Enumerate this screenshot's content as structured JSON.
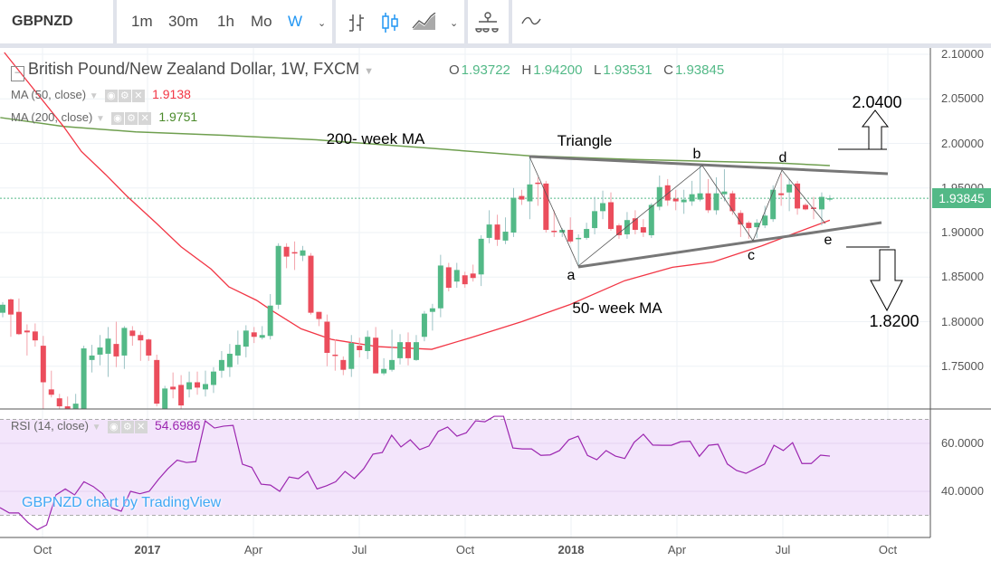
{
  "toolbar": {
    "symbol": "GBPNZD",
    "intervals": [
      "1m",
      "30m",
      "1h",
      "Mo",
      "W"
    ],
    "active_interval": "W",
    "accent": "#2196f3"
  },
  "legend": {
    "title": "British Pound/New Zealand Dollar, 1W, FXCM",
    "o_label": "O",
    "o": "1.93722",
    "h_label": "H",
    "h": "1.94200",
    "l_label": "L",
    "l": "1.93531",
    "c_label": "C",
    "c": "1.93845"
  },
  "ma50": {
    "label": "MA (50, close)",
    "value": "1.9138",
    "color": "#f23645"
  },
  "ma200": {
    "label": "MA (200, close)",
    "value": "1.9751",
    "color": "#4a8a2a"
  },
  "rsi": {
    "label": "RSI (14, close)",
    "value": "54.6986",
    "color": "#9c27b0"
  },
  "price_axis": [
    "2.10000",
    "2.05000",
    "2.00000",
    "1.95000",
    "1.90000",
    "1.85000",
    "1.80000",
    "1.75000"
  ],
  "current_price": "1.93845",
  "rsi_axis": [
    "60.0000",
    "40.0000"
  ],
  "time_axis": [
    "Oct",
    "2017",
    "Apr",
    "Jul",
    "Oct",
    "2018",
    "Apr",
    "Jul",
    "Oct"
  ],
  "watermark": "GBPNZD chart by TradingView",
  "annotations": {
    "triangle": "Triangle",
    "ma200_label": "200- week MA",
    "ma50_label": "50- week MA",
    "a": "a",
    "b": "b",
    "c": "c",
    "d": "d",
    "e": "e",
    "target_up": "2.0400",
    "target_down": "1.8200"
  },
  "colors": {
    "up": "#53b987",
    "down": "#eb4d5c"
  },
  "chart_data": {
    "type": "candlestick",
    "ylim": [
      1.7,
      2.1
    ],
    "ohlc": [
      [
        1.81,
        1.822,
        1.805,
        1.819
      ],
      [
        1.825,
        1.826,
        1.783,
        1.808
      ],
      [
        1.811,
        1.826,
        1.785,
        1.786
      ],
      [
        1.79,
        1.797,
        1.762,
        1.788
      ],
      [
        1.789,
        1.798,
        1.772,
        1.779
      ],
      [
        1.773,
        1.784,
        1.7,
        1.732
      ],
      [
        1.724,
        1.745,
        1.715,
        1.718
      ],
      [
        1.714,
        1.719,
        1.7,
        1.705
      ],
      [
        1.705,
        1.716,
        1.698,
        1.702
      ],
      [
        1.7,
        1.719,
        1.698,
        1.708
      ],
      [
        1.7,
        1.773,
        1.69,
        1.77
      ],
      [
        1.757,
        1.774,
        1.743,
        1.762
      ],
      [
        1.763,
        1.785,
        1.751,
        1.771
      ],
      [
        1.764,
        1.794,
        1.738,
        1.781
      ],
      [
        1.775,
        1.8,
        1.749,
        1.761
      ],
      [
        1.762,
        1.795,
        1.747,
        1.793
      ],
      [
        1.79,
        1.795,
        1.773,
        1.784
      ],
      [
        1.785,
        1.789,
        1.756,
        1.779
      ],
      [
        1.78,
        1.781,
        1.756,
        1.762
      ],
      [
        1.757,
        1.763,
        1.705,
        1.708
      ],
      [
        1.7,
        1.728,
        1.695,
        1.725
      ],
      [
        1.727,
        1.743,
        1.714,
        1.724
      ],
      [
        1.729,
        1.74,
        1.7,
        1.706
      ],
      [
        1.724,
        1.744,
        1.715,
        1.732
      ],
      [
        1.732,
        1.744,
        1.718,
        1.726
      ],
      [
        1.724,
        1.745,
        1.716,
        1.73
      ],
      [
        1.729,
        1.749,
        1.72,
        1.744
      ],
      [
        1.745,
        1.767,
        1.737,
        1.757
      ],
      [
        1.749,
        1.775,
        1.738,
        1.764
      ],
      [
        1.762,
        1.79,
        1.752,
        1.774
      ],
      [
        1.772,
        1.796,
        1.76,
        1.79
      ],
      [
        1.788,
        1.794,
        1.776,
        1.783
      ],
      [
        1.782,
        1.795,
        1.78,
        1.785
      ],
      [
        1.784,
        1.831,
        1.78,
        1.818
      ],
      [
        1.819,
        1.888,
        1.814,
        1.885
      ],
      [
        1.884,
        1.888,
        1.86,
        1.873
      ],
      [
        1.878,
        1.89,
        1.858,
        1.877
      ],
      [
        1.874,
        1.885,
        1.868,
        1.88
      ],
      [
        1.874,
        1.877,
        1.808,
        1.81
      ],
      [
        1.811,
        1.811,
        1.795,
        1.803
      ],
      [
        1.8,
        1.808,
        1.75,
        1.765
      ],
      [
        1.763,
        1.78,
        1.745,
        1.762
      ],
      [
        1.757,
        1.761,
        1.74,
        1.746
      ],
      [
        1.747,
        1.785,
        1.738,
        1.776
      ],
      [
        1.773,
        1.782,
        1.76,
        1.768
      ],
      [
        1.767,
        1.79,
        1.758,
        1.783
      ],
      [
        1.782,
        1.794,
        1.742,
        1.742
      ],
      [
        1.742,
        1.759,
        1.74,
        1.747
      ],
      [
        1.746,
        1.791,
        1.744,
        1.757
      ],
      [
        1.759,
        1.786,
        1.752,
        1.777
      ],
      [
        1.777,
        1.788,
        1.751,
        1.759
      ],
      [
        1.757,
        1.785,
        1.756,
        1.777
      ],
      [
        1.783,
        1.812,
        1.778,
        1.809
      ],
      [
        1.811,
        1.82,
        1.79,
        1.815
      ],
      [
        1.815,
        1.875,
        1.805,
        1.863
      ],
      [
        1.861,
        1.866,
        1.834,
        1.838
      ],
      [
        1.845,
        1.866,
        1.838,
        1.858
      ],
      [
        1.852,
        1.856,
        1.838,
        1.842
      ],
      [
        1.854,
        1.864,
        1.845,
        1.849
      ],
      [
        1.853,
        1.897,
        1.84,
        1.893
      ],
      [
        1.894,
        1.925,
        1.888,
        1.909
      ],
      [
        1.909,
        1.92,
        1.885,
        1.892
      ],
      [
        1.891,
        1.917,
        1.887,
        1.901
      ],
      [
        1.9,
        1.95,
        1.895,
        1.939
      ],
      [
        1.941,
        1.948,
        1.931,
        1.937
      ],
      [
        1.935,
        1.985,
        1.915,
        1.954
      ],
      [
        1.956,
        1.962,
        1.93,
        1.955
      ],
      [
        1.955,
        1.958,
        1.9,
        1.903
      ],
      [
        1.902,
        1.925,
        1.895,
        1.901
      ],
      [
        1.9,
        1.905,
        1.895,
        1.903
      ],
      [
        1.903,
        1.917,
        1.888,
        1.89
      ],
      [
        1.893,
        1.898,
        1.862,
        1.894
      ],
      [
        1.894,
        1.911,
        1.892,
        1.904
      ],
      [
        1.905,
        1.94,
        1.898,
        1.924
      ],
      [
        1.924,
        1.947,
        1.915,
        1.933
      ],
      [
        1.934,
        1.945,
        1.902,
        1.904
      ],
      [
        1.908,
        1.91,
        1.893,
        1.897
      ],
      [
        1.898,
        1.923,
        1.893,
        1.914
      ],
      [
        1.916,
        1.925,
        1.898,
        1.903
      ],
      [
        1.906,
        1.915,
        1.895,
        1.9
      ],
      [
        1.897,
        1.933,
        1.894,
        1.931
      ],
      [
        1.929,
        1.964,
        1.925,
        1.951
      ],
      [
        1.953,
        1.96,
        1.93,
        1.936
      ],
      [
        1.938,
        1.948,
        1.925,
        1.935
      ],
      [
        1.934,
        1.948,
        1.921,
        1.937
      ],
      [
        1.935,
        1.958,
        1.93,
        1.943
      ],
      [
        1.937,
        1.975,
        1.935,
        1.944
      ],
      [
        1.944,
        1.96,
        1.922,
        1.925
      ],
      [
        1.925,
        1.962,
        1.92,
        1.944
      ],
      [
        1.943,
        1.971,
        1.935,
        1.946
      ],
      [
        1.944,
        1.947,
        1.92,
        1.924
      ],
      [
        1.922,
        1.925,
        1.895,
        1.909
      ],
      [
        1.911,
        1.913,
        1.893,
        1.905
      ],
      [
        1.906,
        1.915,
        1.894,
        1.911
      ],
      [
        1.908,
        1.93,
        1.905,
        1.919
      ],
      [
        1.915,
        1.953,
        1.912,
        1.948
      ],
      [
        1.944,
        1.966,
        1.93,
        1.942
      ],
      [
        1.945,
        1.96,
        1.924,
        1.954
      ],
      [
        1.955,
        1.958,
        1.92,
        1.927
      ],
      [
        1.931,
        1.933,
        1.925,
        1.926
      ],
      [
        1.928,
        1.94,
        1.915,
        1.927
      ],
      [
        1.926,
        1.945,
        1.908,
        1.94
      ],
      [
        1.937,
        1.942,
        1.935,
        1.93845
      ]
    ],
    "ma50_points": [
      [
        0.2,
        2.102
      ],
      [
        7.5,
        2.019
      ],
      [
        9.7,
        1.991
      ],
      [
        12.7,
        1.965
      ],
      [
        15.3,
        1.941
      ],
      [
        19,
        1.91
      ],
      [
        22,
        1.884
      ],
      [
        25.7,
        1.859
      ],
      [
        27.9,
        1.839
      ],
      [
        31.3,
        1.824
      ],
      [
        33.1,
        1.813
      ],
      [
        36.8,
        1.792
      ],
      [
        40.6,
        1.78
      ],
      [
        46.2,
        1.772
      ],
      [
        52.9,
        1.769
      ],
      [
        57.7,
        1.782
      ],
      [
        64,
        1.8
      ],
      [
        69.9,
        1.819
      ],
      [
        76.7,
        1.846
      ],
      [
        82.6,
        1.861
      ],
      [
        87.6,
        1.867
      ],
      [
        93.6,
        1.885
      ],
      [
        97.9,
        1.9
      ],
      [
        102,
        1.9138
      ]
    ],
    "ma200_points": [
      [
        -0.3,
        2.029
      ],
      [
        7.5,
        2.019
      ],
      [
        16.4,
        2.013
      ],
      [
        27.6,
        2.009
      ],
      [
        38.7,
        2.004
      ],
      [
        52.1,
        1.995
      ],
      [
        65,
        1.986
      ],
      [
        77.8,
        1.982
      ],
      [
        86.7,
        1.98
      ],
      [
        95.6,
        1.978
      ],
      [
        102,
        1.9751
      ]
    ],
    "rsi_values": [
      33.2,
      31,
      31,
      27,
      24,
      26,
      38.5,
      41,
      38.5,
      44,
      42,
      39,
      33,
      31.7,
      40,
      39,
      40,
      45,
      49.4,
      53,
      52,
      52.4,
      69.4,
      66.4,
      67.2,
      67.5,
      51.3,
      50,
      43,
      42.6,
      40,
      46,
      45.3,
      48.3,
      41,
      42.3,
      44,
      48.3,
      45.3,
      49.4,
      55.5,
      56.2,
      63.4,
      58.5,
      61.5,
      57.4,
      58.9,
      65,
      66.8,
      63,
      64.4,
      69.4,
      69,
      71.3,
      71.3,
      58.1,
      57.7,
      57.7,
      55,
      55.2,
      57,
      61.5,
      63,
      55,
      53.2,
      57,
      54.7,
      53.7,
      60.4,
      63.8,
      59.3,
      59.2,
      59.2,
      60.7,
      60.9,
      54.6,
      59.2,
      59.6,
      51.4,
      48.7,
      47.5,
      49.4,
      51.4,
      59.2,
      57,
      60.3,
      51.6,
      51.6,
      55.1,
      54.7
    ],
    "rsi_levels": [
      70,
      30
    ],
    "rsi_ylim": [
      20,
      80
    ]
  }
}
